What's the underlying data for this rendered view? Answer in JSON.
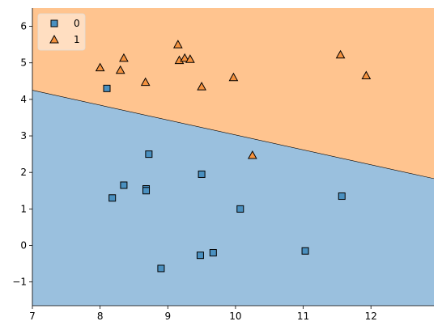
{
  "chart_data": {
    "type": "scatter",
    "title": "",
    "xlabel": "",
    "ylabel": "",
    "xlim": [
      7.0,
      12.93
    ],
    "ylim": [
      -1.65,
      6.5
    ],
    "x_ticks": [
      7,
      8,
      9,
      10,
      11,
      12
    ],
    "y_ticks": [
      -1,
      0,
      1,
      2,
      3,
      4,
      5,
      6
    ],
    "y_tick_labels": [
      "−1",
      "0",
      "1",
      "2",
      "3",
      "4",
      "5",
      "6"
    ],
    "grid": false,
    "legend_position": "top-left",
    "decision_boundary": {
      "type": "linear",
      "points": [
        [
          7.0,
          4.25
        ],
        [
          12.93,
          1.83
        ]
      ]
    },
    "regions": [
      {
        "class": "0",
        "side": "below",
        "color": "#9ac0de"
      },
      {
        "class": "1",
        "side": "above",
        "color": "#ffc48f"
      }
    ],
    "series": [
      {
        "name": "0",
        "marker": "square",
        "color": "#4a90c0",
        "edge_color": "#000000",
        "points": [
          [
            8.1,
            4.3
          ],
          [
            8.72,
            2.5
          ],
          [
            9.5,
            1.95
          ],
          [
            8.35,
            1.65
          ],
          [
            8.18,
            1.3
          ],
          [
            8.68,
            1.55
          ],
          [
            8.68,
            1.5
          ],
          [
            10.07,
            1.0
          ],
          [
            11.57,
            1.35
          ],
          [
            11.03,
            -0.15
          ],
          [
            9.67,
            -0.2
          ],
          [
            9.48,
            -0.27
          ],
          [
            8.9,
            -0.63
          ]
        ]
      },
      {
        "name": "1",
        "marker": "triangle",
        "color": "#f5923e",
        "edge_color": "#000000",
        "points": [
          [
            8.0,
            4.87
          ],
          [
            8.35,
            5.13
          ],
          [
            8.3,
            4.8
          ],
          [
            8.67,
            4.47
          ],
          [
            9.15,
            5.5
          ],
          [
            9.17,
            5.07
          ],
          [
            9.25,
            5.13
          ],
          [
            9.33,
            5.1
          ],
          [
            9.5,
            4.35
          ],
          [
            9.97,
            4.6
          ],
          [
            11.55,
            5.22
          ],
          [
            11.93,
            4.65
          ],
          [
            10.25,
            2.47
          ]
        ]
      }
    ]
  }
}
